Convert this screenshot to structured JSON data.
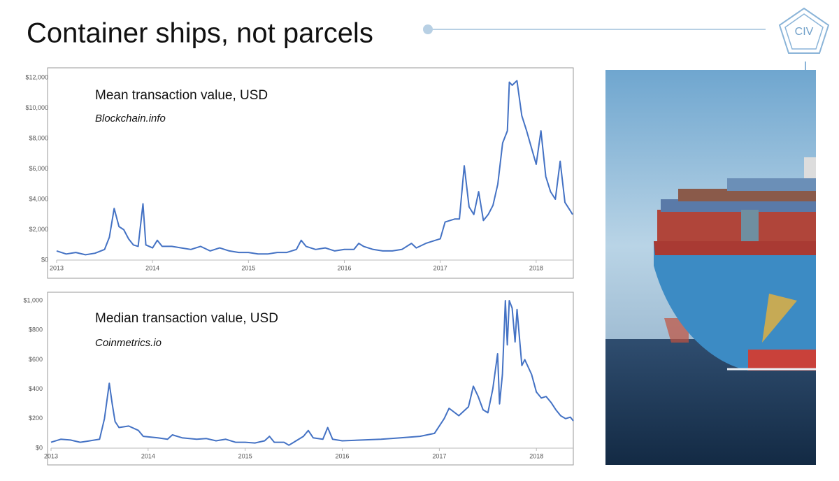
{
  "slide": {
    "title": "Container ships, not parcels",
    "logo": "CIV"
  },
  "chart_data": [
    {
      "type": "line",
      "title": "Mean transaction value, USD",
      "subtitle": "Blockchain.info",
      "color": "#4472c4",
      "xlim": [
        2013,
        2018.38
      ],
      "xticks": [
        2013,
        2014,
        2015,
        2016,
        2017,
        2018
      ],
      "ylim": [
        0,
        12000
      ],
      "yticks": [
        {
          "value": 0,
          "label": "$0"
        },
        {
          "value": 2000,
          "label": "$2,000"
        },
        {
          "value": 4000,
          "label": "$4,000"
        },
        {
          "value": 6000,
          "label": "$6,000"
        },
        {
          "value": 8000,
          "label": "$8,000"
        },
        {
          "value": 10000,
          "label": "$10,000"
        },
        {
          "value": 12000,
          "label": "$12,000"
        }
      ],
      "x": [
        2013.0,
        2013.1,
        2013.2,
        2013.3,
        2013.4,
        2013.5,
        2013.55,
        2013.6,
        2013.65,
        2013.7,
        2013.75,
        2013.8,
        2013.85,
        2013.9,
        2013.93,
        2014.0,
        2014.05,
        2014.1,
        2014.2,
        2014.3,
        2014.4,
        2014.5,
        2014.6,
        2014.7,
        2014.8,
        2014.9,
        2015.0,
        2015.1,
        2015.2,
        2015.3,
        2015.4,
        2015.5,
        2015.55,
        2015.6,
        2015.7,
        2015.8,
        2015.9,
        2016.0,
        2016.1,
        2016.15,
        2016.2,
        2016.3,
        2016.4,
        2016.5,
        2016.6,
        2016.7,
        2016.75,
        2016.85,
        2016.95,
        2017.0,
        2017.05,
        2017.15,
        2017.2,
        2017.25,
        2017.3,
        2017.35,
        2017.4,
        2017.45,
        2017.5,
        2017.55,
        2017.6,
        2017.65,
        2017.7,
        2017.72,
        2017.75,
        2017.8,
        2017.85,
        2017.9,
        2017.95,
        2018.0,
        2018.05,
        2018.1,
        2018.15,
        2018.2,
        2018.25,
        2018.3,
        2018.35,
        2018.38
      ],
      "values": [
        600,
        400,
        500,
        350,
        450,
        700,
        1500,
        3400,
        2200,
        2000,
        1400,
        1000,
        900,
        3700,
        1000,
        800,
        1300,
        900,
        900,
        800,
        700,
        900,
        600,
        800,
        600,
        500,
        500,
        400,
        400,
        500,
        500,
        700,
        1300,
        900,
        700,
        800,
        600,
        700,
        700,
        1100,
        900,
        700,
        600,
        600,
        700,
        1100,
        800,
        1100,
        1300,
        1400,
        2500,
        2700,
        2700,
        6200,
        3500,
        3000,
        4500,
        2600,
        3000,
        3600,
        5000,
        7700,
        8500,
        11700,
        11500,
        11800,
        9500,
        8500,
        7400,
        6300,
        8500,
        5500,
        4500,
        4000,
        6500,
        3800,
        3300,
        3000
      ]
    },
    {
      "type": "line",
      "title": "Median transaction value, USD",
      "subtitle": "Coinmetrics.io",
      "color": "#4472c4",
      "xlim": [
        2013,
        2018.38
      ],
      "xticks": [
        2013,
        2014,
        2015,
        2016,
        2017,
        2018
      ],
      "ylim": [
        0,
        1000
      ],
      "yticks": [
        {
          "value": 0,
          "label": "$0"
        },
        {
          "value": 200,
          "label": "$200"
        },
        {
          "value": 400,
          "label": "$400"
        },
        {
          "value": 600,
          "label": "$600"
        },
        {
          "value": 800,
          "label": "$800"
        },
        {
          "value": 1000,
          "label": "$1,000"
        }
      ],
      "x": [
        2013.0,
        2013.1,
        2013.2,
        2013.3,
        2013.4,
        2013.5,
        2013.55,
        2013.6,
        2013.63,
        2013.66,
        2013.7,
        2013.8,
        2013.9,
        2013.95,
        2014.1,
        2014.2,
        2014.25,
        2014.35,
        2014.5,
        2014.6,
        2014.7,
        2014.8,
        2014.9,
        2015.0,
        2015.1,
        2015.2,
        2015.25,
        2015.3,
        2015.4,
        2015.45,
        2015.5,
        2015.6,
        2015.65,
        2015.7,
        2015.8,
        2015.85,
        2015.9,
        2016.0,
        2016.2,
        2016.4,
        2016.6,
        2016.8,
        2016.95,
        2017.05,
        2017.1,
        2017.2,
        2017.3,
        2017.35,
        2017.4,
        2017.45,
        2017.5,
        2017.55,
        2017.6,
        2017.62,
        2017.65,
        2017.68,
        2017.7,
        2017.72,
        2017.75,
        2017.78,
        2017.8,
        2017.85,
        2017.88,
        2017.95,
        2018.0,
        2018.05,
        2018.1,
        2018.15,
        2018.2,
        2018.25,
        2018.3,
        2018.35,
        2018.38
      ],
      "values": [
        40,
        60,
        55,
        40,
        50,
        60,
        200,
        440,
        300,
        180,
        140,
        150,
        120,
        80,
        70,
        60,
        90,
        70,
        60,
        65,
        50,
        60,
        40,
        40,
        35,
        50,
        80,
        40,
        40,
        20,
        40,
        80,
        120,
        70,
        60,
        140,
        60,
        50,
        55,
        60,
        70,
        80,
        100,
        200,
        270,
        220,
        280,
        420,
        350,
        260,
        240,
        400,
        640,
        300,
        500,
        1000,
        700,
        1000,
        950,
        720,
        940,
        560,
        600,
        500,
        380,
        340,
        350,
        310,
        260,
        220,
        200,
        210,
        185
      ]
    }
  ]
}
